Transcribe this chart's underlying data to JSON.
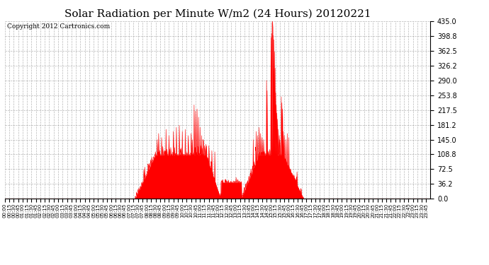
{
  "title": "Solar Radiation per Minute W/m2 (24 Hours) 20120221",
  "copyright": "Copyright 2012 Cartronics.com",
  "ylim": [
    0.0,
    435.0
  ],
  "yticks": [
    0.0,
    36.2,
    72.5,
    108.8,
    145.0,
    181.2,
    217.5,
    253.8,
    290.0,
    326.2,
    362.5,
    398.8,
    435.0
  ],
  "fill_color": "#ff0000",
  "line_color": "#ff0000",
  "bg_color": "#ffffff",
  "grid_color": "#888888",
  "title_fontsize": 11,
  "copyright_fontsize": 6.5
}
